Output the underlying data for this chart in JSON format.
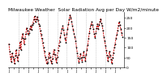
{
  "title": "Milwaukee Weather  Solar Radiation Avg per Day W/m2/minute",
  "line_color": "#cc0000",
  "dot_color": "#000000",
  "background": "#ffffff",
  "grid_color": "#888888",
  "ylim": [
    0,
    280
  ],
  "yticks": [
    0,
    50,
    100,
    150,
    200,
    250
  ],
  "title_fontsize": 4.2,
  "tick_fontsize": 3.2,
  "linewidth": 0.7,
  "markersize": 1.0,
  "values": [
    120,
    80,
    55,
    30,
    75,
    55,
    40,
    20,
    60,
    90,
    55,
    35,
    65,
    100,
    130,
    90,
    150,
    170,
    145,
    120,
    145,
    170,
    200,
    185,
    165,
    175,
    195,
    210,
    190,
    215,
    225,
    245,
    260,
    230,
    245,
    255,
    240,
    220,
    210,
    185,
    165,
    145,
    125,
    100,
    80,
    55,
    40,
    20,
    25,
    50,
    75,
    55,
    35,
    20,
    45,
    70,
    90,
    65,
    45,
    25,
    55,
    85,
    110,
    130,
    155,
    175,
    195,
    210,
    190,
    165,
    145,
    125,
    170,
    195,
    220,
    245,
    265,
    250,
    230,
    210,
    190,
    170,
    155,
    135,
    100,
    75,
    50,
    25,
    45,
    70,
    50,
    30,
    55,
    80,
    55,
    35,
    65,
    90,
    115,
    145,
    175,
    200,
    215,
    230,
    215,
    195,
    170,
    150,
    175,
    200,
    220,
    195,
    215,
    230,
    245,
    225,
    210,
    185,
    155,
    135,
    110,
    85,
    60,
    35,
    55,
    80,
    60,
    40,
    20,
    50,
    75,
    100,
    120,
    145,
    165,
    185,
    210,
    230,
    215,
    195,
    175,
    155
  ],
  "vline_positions": [
    12,
    24,
    36,
    48,
    60,
    72,
    84,
    96,
    108,
    120
  ],
  "xtick_positions": [
    0,
    6,
    12,
    18,
    24,
    30,
    36,
    42,
    48,
    54,
    60,
    66,
    72,
    78,
    84,
    90,
    96,
    102,
    108,
    114,
    120,
    126,
    132,
    138
  ],
  "xtick_labels": [
    "J",
    "",
    "J",
    "",
    "J",
    "",
    "J",
    "",
    "J",
    "",
    "J",
    "",
    "J",
    "",
    "J",
    "",
    "J",
    "",
    "J",
    "",
    "J",
    "",
    "J",
    ""
  ]
}
